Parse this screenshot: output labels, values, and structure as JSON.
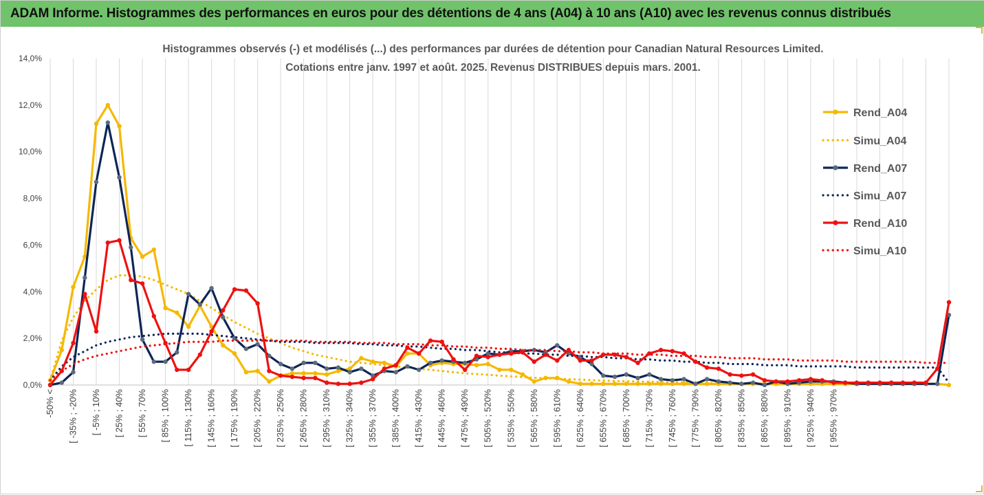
{
  "banner": {
    "title": "ADAM Informe. Histogrammes des performances en euros pour des détentions de 4 ans (A04) à 10 ans (A10) avec les revenus connus distribués"
  },
  "colors": {
    "banner_bg": "#70c36a",
    "A04": "#f5b800",
    "A07": "#0d2557",
    "A10": "#ee1111",
    "grid": "#d9d9d9"
  },
  "chart_data": {
    "type": "line",
    "title_lines": [
      "Histogrammes observés (-) et modélisés (...) des performances par durées de détention pour Canadian Natural Resources Limited.",
      "Cotations entre janv. 1997 et août. 2025. Revenus DISTRIBUES depuis mars. 2001."
    ],
    "ylim": [
      0,
      14
    ],
    "yticks": [
      "0,0%",
      "2,0%",
      "4,0%",
      "6,0%",
      "8,0%",
      "10,0%",
      "12,0%",
      "14,0%"
    ],
    "grid": "vertical",
    "legend_position": "right",
    "x_tick_labels": [
      "-50% <",
      "[ -35% ; -20%",
      "[ -5% ; 10%",
      "[ 25% ; 40%",
      "[ 55% ; 70%",
      "[ 85% ; 100%",
      "[ 115% ; 130%",
      "[ 145% ; 160%",
      "[ 175% ; 190%",
      "[ 205% ; 220%",
      "[ 235% ; 250%",
      "[ 265% ; 280%",
      "[ 295% ; 310%",
      "[ 325% ; 340%",
      "[ 355% ; 370%",
      "[ 385% ; 400%",
      "[ 415% ; 430%",
      "[ 445% ; 460%",
      "[ 475% ; 490%",
      "[ 505% ; 520%",
      "[ 535% ; 550%",
      "[ 565% ; 580%",
      "[ 595% ; 610%",
      "[ 625% ; 640%",
      "[ 655% ; 670%",
      "[ 685% ; 700%",
      "[ 715% ; 730%",
      "[ 745% ; 760%",
      "[ 775% ; 790%",
      "[ 805% ; 820%",
      "[ 835% ; 850%",
      "[ 865% ; 880%",
      "[ 895% ; 910%",
      "[ 925% ; 940%",
      "[ 955% ; 970%"
    ],
    "series": [
      {
        "name": "Rend_A04",
        "style": "solid-markers",
        "color": "#f5b800",
        "values": [
          0.2,
          1.5,
          4.2,
          5.5,
          11.2,
          12.0,
          11.1,
          6.3,
          5.5,
          5.8,
          3.3,
          3.1,
          2.5,
          3.4,
          2.5,
          1.7,
          1.35,
          0.55,
          0.6,
          0.15,
          0.4,
          0.5,
          0.5,
          0.5,
          0.45,
          0.6,
          0.7,
          1.15,
          1.0,
          0.95,
          0.8,
          1.35,
          1.35,
          0.85,
          0.95,
          0.9,
          0.9,
          0.85,
          0.9,
          0.65,
          0.65,
          0.45,
          0.15,
          0.3,
          0.3,
          0.15,
          0.05,
          0.05,
          0.05,
          0.05,
          0.05,
          0.05,
          0.05,
          0.05,
          0.05,
          0.05,
          0.05,
          0.05,
          0.05,
          0.05,
          0.05,
          0.05,
          0.05,
          0.05,
          0.05,
          0.05,
          0.05,
          0.05,
          0.05,
          0.05,
          0.05,
          0.05,
          0.05,
          0.05,
          0.05,
          0.05,
          0.05,
          0.05,
          0.0
        ]
      },
      {
        "name": "Simu_A04",
        "style": "dotted",
        "color": "#f5b800",
        "values": [
          0.2,
          1.9,
          2.9,
          3.6,
          4.1,
          4.5,
          4.7,
          4.7,
          4.65,
          4.5,
          4.3,
          4.1,
          3.9,
          3.6,
          3.3,
          3.0,
          2.7,
          2.45,
          2.2,
          2.0,
          1.8,
          1.6,
          1.45,
          1.3,
          1.2,
          1.1,
          1.0,
          0.95,
          0.9,
          0.85,
          0.8,
          0.75,
          0.7,
          0.65,
          0.6,
          0.55,
          0.5,
          0.47,
          0.44,
          0.4,
          0.37,
          0.34,
          0.31,
          0.29,
          0.27,
          0.25,
          0.23,
          0.21,
          0.19,
          0.17,
          0.16,
          0.15,
          0.14,
          0.13,
          0.12,
          0.11,
          0.1,
          0.09,
          0.08,
          0.08,
          0.07,
          0.07,
          0.06,
          0.06,
          0.05,
          0.05,
          0.05,
          0.04,
          0.04,
          0.04,
          0.04,
          0.03,
          0.03,
          0.03,
          0.03,
          0.03,
          0.03,
          0.02,
          0.02
        ]
      },
      {
        "name": "Rend_A07",
        "style": "solid-markers",
        "color": "#0d2557",
        "values": [
          0.0,
          0.1,
          0.55,
          4.6,
          8.7,
          11.25,
          8.9,
          5.9,
          1.95,
          1.0,
          1.0,
          1.4,
          3.9,
          3.45,
          4.15,
          2.9,
          2.0,
          1.55,
          1.75,
          1.25,
          0.9,
          0.7,
          0.95,
          0.95,
          0.7,
          0.75,
          0.55,
          0.7,
          0.4,
          0.6,
          0.55,
          0.8,
          0.65,
          0.95,
          1.05,
          1.0,
          0.95,
          1.1,
          1.35,
          1.3,
          1.45,
          1.45,
          1.5,
          1.4,
          1.7,
          1.35,
          1.2,
          0.9,
          0.4,
          0.35,
          0.45,
          0.3,
          0.45,
          0.25,
          0.2,
          0.25,
          0.05,
          0.25,
          0.15,
          0.1,
          0.05,
          0.1,
          0.0,
          0.15,
          0.05,
          0.1,
          0.15,
          0.15,
          0.15,
          0.1,
          0.05,
          0.05,
          0.05,
          0.05,
          0.05,
          0.05,
          0.05,
          0.05,
          3.0
        ]
      },
      {
        "name": "Simu_A07",
        "style": "dotted",
        "color": "#0d2557",
        "values": [
          0.2,
          0.8,
          1.2,
          1.45,
          1.7,
          1.85,
          1.95,
          2.05,
          2.1,
          2.15,
          2.2,
          2.2,
          2.2,
          2.2,
          2.15,
          2.1,
          2.05,
          2.0,
          1.95,
          1.9,
          1.85,
          1.85,
          1.85,
          1.8,
          1.8,
          1.8,
          1.8,
          1.75,
          1.75,
          1.7,
          1.7,
          1.65,
          1.65,
          1.6,
          1.55,
          1.55,
          1.5,
          1.5,
          1.45,
          1.4,
          1.4,
          1.35,
          1.35,
          1.3,
          1.3,
          1.25,
          1.25,
          1.2,
          1.2,
          1.15,
          1.15,
          1.1,
          1.1,
          1.05,
          1.05,
          1.0,
          1.0,
          0.95,
          0.95,
          0.9,
          0.9,
          0.9,
          0.85,
          0.85,
          0.85,
          0.8,
          0.8,
          0.8,
          0.8,
          0.8,
          0.75,
          0.75,
          0.75,
          0.75,
          0.75,
          0.75,
          0.75,
          0.75,
          0.1
        ]
      },
      {
        "name": "Rend_A10",
        "style": "solid-markers",
        "color": "#ee1111",
        "values": [
          0.0,
          0.6,
          1.8,
          3.9,
          2.3,
          6.1,
          6.2,
          4.5,
          4.35,
          2.95,
          1.8,
          0.65,
          0.65,
          1.3,
          2.3,
          3.2,
          4.1,
          4.05,
          3.5,
          0.6,
          0.4,
          0.35,
          0.3,
          0.3,
          0.1,
          0.05,
          0.05,
          0.1,
          0.25,
          0.7,
          0.85,
          1.6,
          1.35,
          1.9,
          1.85,
          1.1,
          0.65,
          1.25,
          1.2,
          1.3,
          1.35,
          1.4,
          1.0,
          1.3,
          1.05,
          1.5,
          1.05,
          1.05,
          1.3,
          1.3,
          1.2,
          0.95,
          1.35,
          1.5,
          1.45,
          1.35,
          1.0,
          0.75,
          0.7,
          0.45,
          0.4,
          0.45,
          0.2,
          0.15,
          0.15,
          0.2,
          0.25,
          0.2,
          0.1,
          0.1,
          0.1,
          0.1,
          0.1,
          0.1,
          0.1,
          0.1,
          0.1,
          0.7,
          3.55
        ]
      },
      {
        "name": "Simu_A10",
        "style": "dotted",
        "color": "#ee1111",
        "values": [
          0.2,
          0.6,
          0.9,
          1.1,
          1.25,
          1.35,
          1.45,
          1.55,
          1.65,
          1.7,
          1.75,
          1.8,
          1.85,
          1.85,
          1.85,
          1.9,
          1.9,
          1.9,
          1.9,
          1.9,
          1.9,
          1.9,
          1.9,
          1.85,
          1.85,
          1.85,
          1.85,
          1.8,
          1.8,
          1.8,
          1.75,
          1.75,
          1.75,
          1.7,
          1.7,
          1.65,
          1.65,
          1.6,
          1.6,
          1.55,
          1.55,
          1.5,
          1.5,
          1.5,
          1.45,
          1.45,
          1.4,
          1.4,
          1.35,
          1.35,
          1.35,
          1.3,
          1.3,
          1.3,
          1.25,
          1.25,
          1.25,
          1.2,
          1.2,
          1.15,
          1.15,
          1.15,
          1.1,
          1.1,
          1.1,
          1.05,
          1.05,
          1.05,
          1.05,
          1.0,
          1.0,
          1.0,
          1.0,
          1.0,
          1.0,
          1.0,
          0.95,
          0.95,
          0.95
        ]
      }
    ]
  }
}
